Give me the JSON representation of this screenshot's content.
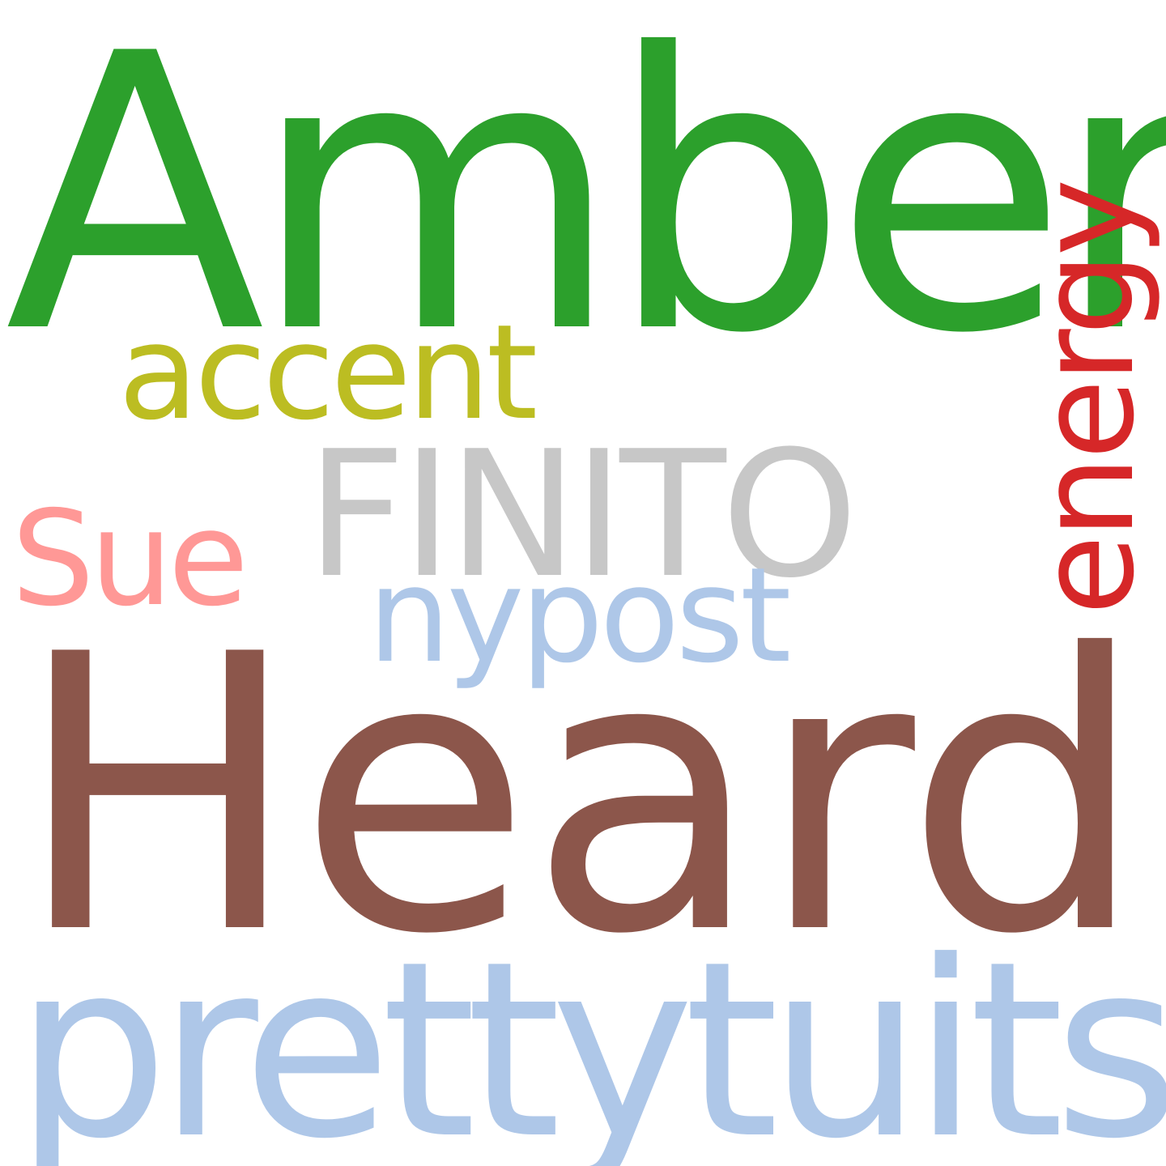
{
  "words": [
    {
      "text": "Amber",
      "color": "#2ca02c"
    },
    {
      "text": "Heard",
      "color": "#8c564b"
    },
    {
      "text": "prettytuits",
      "color": "#aec7e8"
    },
    {
      "text": "FINITO",
      "color": "#c7c7c7"
    },
    {
      "text": "accent",
      "color": "#bcbd22"
    },
    {
      "text": "nypost",
      "color": "#aec7e8"
    },
    {
      "text": "Sue",
      "color": "#ff9896"
    },
    {
      "text": "energy",
      "color": "#d62728",
      "orientation": "vertical"
    }
  ],
  "background": "#ffffff"
}
